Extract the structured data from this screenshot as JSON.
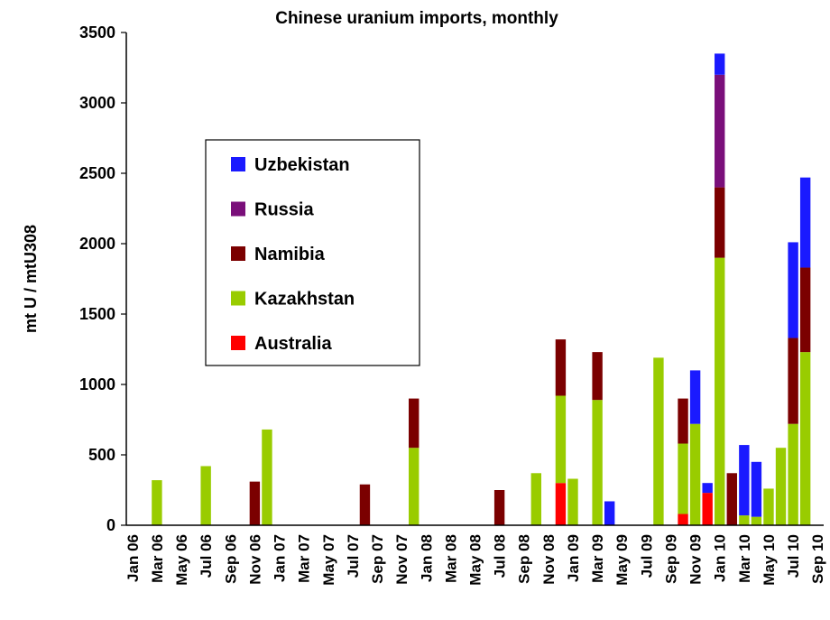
{
  "chart_data": {
    "type": "stacked_bar",
    "title": "Chinese uranium imports, monthly",
    "y_label": "mt U / mtU308",
    "categories": [
      "Jan 06",
      null,
      "Mar 06",
      null,
      "May 06",
      null,
      "Jul 06",
      null,
      "Sep 06",
      null,
      "Nov 06",
      null,
      "Jan 07",
      null,
      "Mar 07",
      null,
      "May 07",
      null,
      "Jul 07",
      null,
      "Sep 07",
      null,
      "Nov 07",
      null,
      "Jan 08",
      null,
      "Mar 08",
      null,
      "May 08",
      null,
      "Jul 08",
      null,
      "Sep 08",
      null,
      "Nov 08",
      null,
      "Jan 09",
      null,
      "Mar 09",
      null,
      "May 09",
      null,
      "Jul 09",
      null,
      "Sep 09",
      null,
      "Nov 09",
      null,
      "Jan 10",
      null,
      "Mar 10",
      null,
      "May 10",
      null,
      "Jul 10",
      null,
      "Sep 10"
    ],
    "series": [
      {
        "name": "Australia",
        "color": "#ff0000",
        "values": [
          0,
          0,
          0,
          0,
          0,
          0,
          0,
          0,
          0,
          0,
          0,
          0,
          0,
          0,
          0,
          0,
          0,
          0,
          0,
          0,
          0,
          0,
          0,
          0,
          0,
          0,
          0,
          0,
          0,
          0,
          0,
          0,
          0,
          0,
          0,
          300,
          0,
          0,
          0,
          0,
          0,
          0,
          0,
          0,
          0,
          80,
          0,
          230,
          0,
          0,
          0,
          0,
          0,
          0,
          0,
          0,
          0
        ]
      },
      {
        "name": "Kazakhstan",
        "color": "#99cc00",
        "values": [
          0,
          0,
          320,
          0,
          0,
          0,
          420,
          0,
          0,
          0,
          0,
          680,
          0,
          0,
          0,
          0,
          0,
          0,
          0,
          0,
          0,
          0,
          0,
          550,
          0,
          0,
          0,
          0,
          0,
          0,
          0,
          0,
          0,
          370,
          0,
          620,
          330,
          0,
          890,
          0,
          0,
          0,
          0,
          1190,
          0,
          500,
          720,
          0,
          1900,
          0,
          70,
          60,
          260,
          550,
          720,
          1230,
          0
        ]
      },
      {
        "name": "Namibia",
        "color": "#7b0000",
        "values": [
          0,
          0,
          0,
          0,
          0,
          0,
          0,
          0,
          0,
          0,
          310,
          0,
          0,
          0,
          0,
          0,
          0,
          0,
          0,
          290,
          0,
          0,
          0,
          350,
          0,
          0,
          0,
          0,
          0,
          0,
          250,
          0,
          0,
          0,
          0,
          400,
          0,
          0,
          340,
          0,
          0,
          0,
          0,
          0,
          0,
          320,
          0,
          0,
          500,
          370,
          0,
          0,
          0,
          0,
          610,
          600,
          0
        ]
      },
      {
        "name": "Russia",
        "color": "#7a0f7a",
        "values": [
          0,
          0,
          0,
          0,
          0,
          0,
          0,
          0,
          0,
          0,
          0,
          0,
          0,
          0,
          0,
          0,
          0,
          0,
          0,
          0,
          0,
          0,
          0,
          0,
          0,
          0,
          0,
          0,
          0,
          0,
          0,
          0,
          0,
          0,
          0,
          0,
          0,
          0,
          0,
          0,
          0,
          0,
          0,
          0,
          0,
          0,
          0,
          0,
          800,
          0,
          0,
          0,
          0,
          0,
          0,
          0,
          0
        ]
      },
      {
        "name": "Uzbekistan",
        "color": "#1a1aff",
        "values": [
          0,
          0,
          0,
          0,
          0,
          0,
          0,
          0,
          0,
          0,
          0,
          0,
          0,
          0,
          0,
          0,
          0,
          0,
          0,
          0,
          0,
          0,
          0,
          0,
          0,
          0,
          0,
          0,
          0,
          0,
          0,
          0,
          0,
          0,
          0,
          0,
          0,
          0,
          0,
          170,
          0,
          0,
          0,
          0,
          0,
          0,
          380,
          70,
          150,
          0,
          500,
          390,
          0,
          0,
          680,
          640,
          0
        ]
      }
    ],
    "ylim": [
      0,
      3500
    ],
    "yticks": [
      0,
      500,
      1000,
      1500,
      2000,
      2500,
      3000,
      3500
    ]
  }
}
